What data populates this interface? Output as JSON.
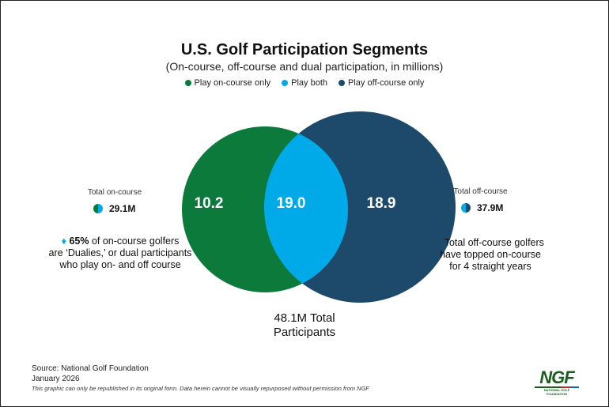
{
  "chart_data": {
    "type": "venn",
    "title": "U.S. Golf Participation Segments",
    "subtitle": "(On-course, off-course and dual participation, in millions)",
    "legend": [
      {
        "name": "Play on-course only",
        "color": "#0b7a3b"
      },
      {
        "name": "Play both",
        "color": "#00a9e8"
      },
      {
        "name": "Play off-course only",
        "color": "#1d4a6b"
      }
    ],
    "segments": [
      {
        "name": "Play on-course only",
        "value": 10.2,
        "label": "10.2"
      },
      {
        "name": "Play both",
        "value": 19.0,
        "label": "19.0"
      },
      {
        "name": "Play off-course only",
        "value": 18.9,
        "label": "18.9"
      }
    ],
    "total_label_line1": "48.1M Total",
    "total_label_line2": "Participants"
  },
  "left": {
    "label": "Total on-course",
    "value": "29.1M",
    "note_bold": "65%",
    "note_line1": " of on-course golfers",
    "note_line2": "are ‘Dualies,’ or dual participants",
    "note_line3": "who play on- and off course"
  },
  "right": {
    "label": "Total off-course",
    "value": "37.9M",
    "note_line1": "Total off-course golfers",
    "note_line2": "have topped on-course",
    "note_line3": "for 4 straight years"
  },
  "footer": {
    "source": "Source: National Golf Foundation",
    "date": "January 2026",
    "disclaimer": "This graphic can only be republished in its original form. Data herein cannot be visually repurposed without permission from NGF",
    "logo": "NGF",
    "logo_sub": "NATIONAL GOLF FOUNDATION"
  }
}
